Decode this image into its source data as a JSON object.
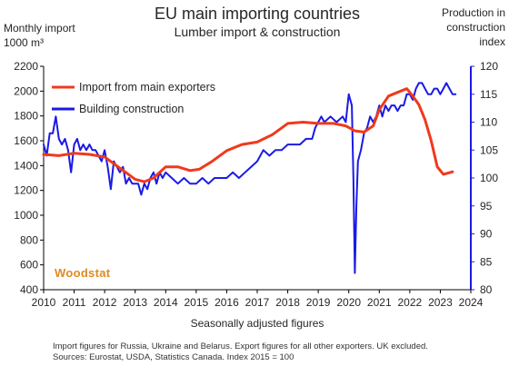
{
  "title": "EU main importing countries",
  "subtitle": "Lumber import & construction",
  "left_axis_label_line1": "Monthly import",
  "left_axis_label_line2": "1000 m³",
  "right_axis_label_line1": "Production in",
  "right_axis_label_line2": "construction",
  "right_axis_label_line3": "index",
  "x_axis_title": "Seasonally adjusted figures",
  "footnote_line1": "Import figures for Russia, Ukraine and Belarus. Export figures for all other exporters. UK excluded.",
  "footnote_line2": "Sources: Eurostat, USDA, Statistics Canada. Index 2015 = 100",
  "brand": "Woodstat",
  "colors": {
    "import": "#f0391b",
    "construction": "#1a1ae6",
    "right_axis": "#1a1ae6",
    "brand": "#e08a1e"
  },
  "chart_data": {
    "type": "line",
    "title": "EU main importing countries",
    "subtitle": "Lumber import & construction",
    "xlabel": "Seasonally adjusted figures",
    "x_ticks": [
      "2010",
      "2011",
      "2012",
      "2013",
      "2014",
      "2015",
      "2016",
      "2017",
      "2018",
      "2019",
      "2020",
      "2021",
      "2022",
      "2023",
      "2024"
    ],
    "xlim": [
      2010,
      2024
    ],
    "left_axis": {
      "label": "Monthly import 1000 m³",
      "ylim": [
        400,
        2200
      ],
      "ticks": [
        "400",
        "600",
        "800",
        "1000",
        "1200",
        "1400",
        "1600",
        "1800",
        "2000",
        "2200"
      ]
    },
    "right_axis": {
      "label": "Production in construction index",
      "ylim": [
        80,
        120
      ],
      "ticks": [
        "80",
        "85",
        "90",
        "95",
        "100",
        "105",
        "110",
        "115",
        "120"
      ]
    },
    "legend": {
      "position": "top-left"
    },
    "grid": false,
    "series": [
      {
        "name": "Import from main exporters",
        "axis": "left",
        "x": [
          2010.0,
          2010.5,
          2011.0,
          2011.5,
          2012.0,
          2012.5,
          2013.0,
          2013.3,
          2013.6,
          2014.0,
          2014.4,
          2014.8,
          2015.1,
          2015.5,
          2016.0,
          2016.5,
          2017.0,
          2017.5,
          2018.0,
          2018.5,
          2019.0,
          2019.5,
          2019.9,
          2020.2,
          2020.5,
          2020.8,
          2021.0,
          2021.3,
          2021.6,
          2021.9,
          2022.1,
          2022.3,
          2022.5,
          2022.7,
          2022.9,
          2023.1,
          2023.4
        ],
        "values": [
          1490,
          1480,
          1500,
          1490,
          1470,
          1380,
          1290,
          1270,
          1300,
          1390,
          1390,
          1360,
          1370,
          1430,
          1520,
          1570,
          1590,
          1650,
          1740,
          1750,
          1740,
          1740,
          1720,
          1680,
          1670,
          1720,
          1850,
          1960,
          1990,
          2020,
          1960,
          1890,
          1770,
          1600,
          1390,
          1330,
          1350
        ]
      },
      {
        "name": "Building construction",
        "axis": "right",
        "x": [
          2010.0,
          2010.1,
          2010.2,
          2010.3,
          2010.4,
          2010.5,
          2010.6,
          2010.7,
          2010.8,
          2010.9,
          2011.0,
          2011.1,
          2011.2,
          2011.3,
          2011.4,
          2011.5,
          2011.6,
          2011.7,
          2011.8,
          2011.9,
          2012.0,
          2012.1,
          2012.2,
          2012.3,
          2012.4,
          2012.5,
          2012.6,
          2012.7,
          2012.8,
          2012.9,
          2013.0,
          2013.1,
          2013.2,
          2013.3,
          2013.4,
          2013.5,
          2013.6,
          2013.7,
          2013.8,
          2013.9,
          2014.0,
          2014.2,
          2014.4,
          2014.6,
          2014.8,
          2015.0,
          2015.2,
          2015.4,
          2015.6,
          2015.8,
          2016.0,
          2016.2,
          2016.4,
          2016.6,
          2016.8,
          2017.0,
          2017.2,
          2017.4,
          2017.6,
          2017.8,
          2018.0,
          2018.2,
          2018.4,
          2018.6,
          2018.8,
          2018.9,
          2019.0,
          2019.1,
          2019.2,
          2019.4,
          2019.6,
          2019.8,
          2019.9,
          2020.0,
          2020.1,
          2020.15,
          2020.2,
          2020.25,
          2020.3,
          2020.4,
          2020.5,
          2020.6,
          2020.7,
          2020.8,
          2020.9,
          2021.0,
          2021.1,
          2021.2,
          2021.3,
          2021.4,
          2021.5,
          2021.6,
          2021.7,
          2021.8,
          2021.9,
          2022.0,
          2022.1,
          2022.2,
          2022.3,
          2022.4,
          2022.5,
          2022.6,
          2022.7,
          2022.8,
          2022.9,
          2023.0,
          2023.1,
          2023.2,
          2023.3,
          2023.4,
          2023.5
        ],
        "values": [
          106,
          104,
          108,
          108,
          111,
          107,
          106,
          107,
          105,
          101,
          106,
          107,
          105,
          106,
          105,
          106,
          105,
          105,
          104,
          103,
          105,
          102,
          98,
          103,
          102,
          101,
          102,
          99,
          100,
          99,
          99,
          99,
          97,
          99,
          98,
          100,
          101,
          99,
          101,
          100,
          101,
          100,
          99,
          100,
          99,
          99,
          100,
          99,
          100,
          100,
          100,
          101,
          100,
          101,
          102,
          103,
          105,
          104,
          105,
          105,
          106,
          106,
          106,
          107,
          107,
          109,
          110,
          111,
          110,
          111,
          110,
          111,
          110,
          115,
          113,
          100,
          83,
          95,
          103,
          105,
          108,
          109,
          111,
          110,
          111,
          113,
          111,
          113,
          112,
          113,
          113,
          112,
          113,
          113,
          115,
          115,
          114,
          116,
          117,
          117,
          116,
          115,
          115,
          116,
          116,
          115,
          116,
          117,
          116,
          115,
          115
        ]
      }
    ]
  }
}
